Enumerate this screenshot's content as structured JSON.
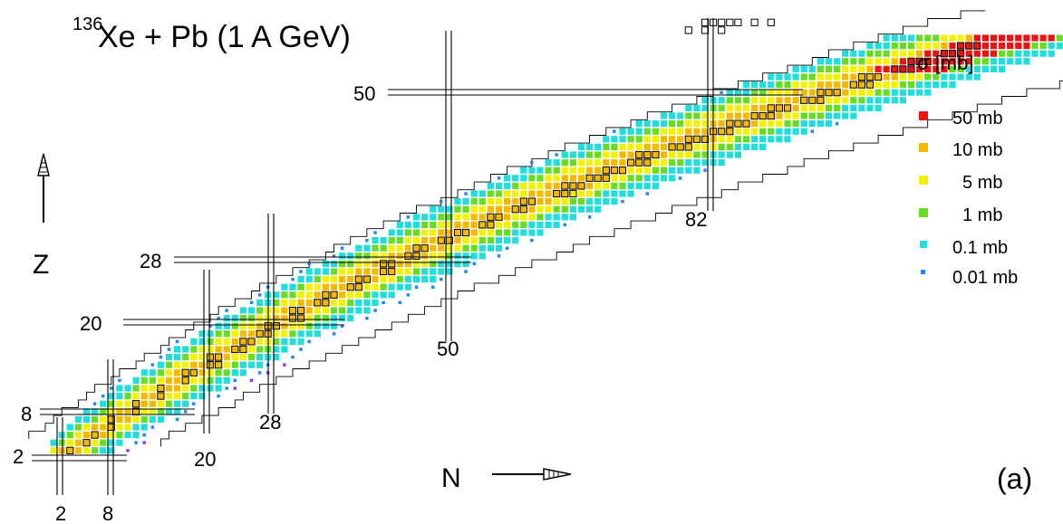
{
  "chart_data": {
    "type": "heatmap",
    "title_super": "136",
    "title_main": "Xe + Pb (1 A GeV)",
    "xlabel": "N",
    "ylabel": "Z",
    "panel_label": "(a)",
    "magic_numbers": {
      "N": [
        "2",
        "8",
        "20",
        "28",
        "50",
        "82"
      ],
      "Z": [
        "2",
        "8",
        "20",
        "28",
        "50"
      ]
    },
    "legend": {
      "title": "σ [mb]",
      "entries": [
        {
          "label": "50 mb",
          "color": "#ee1111"
        },
        {
          "label": "10 mb",
          "color": "#f5b800"
        },
        {
          "label": "5 mb",
          "color": "#f2f200"
        },
        {
          "label": "1 mb",
          "color": "#66dd22"
        },
        {
          "label": "0.1 mb",
          "color": "#22dddd"
        },
        {
          "label": "0.01 mb",
          "color": "#2288ee"
        }
      ]
    },
    "extra_colors": {
      "below_range": "#8844dd",
      "stable_box": "#000000"
    },
    "axis_ranges": {
      "N": [
        0,
        88
      ],
      "Z": [
        0,
        56
      ]
    },
    "grid": false
  }
}
